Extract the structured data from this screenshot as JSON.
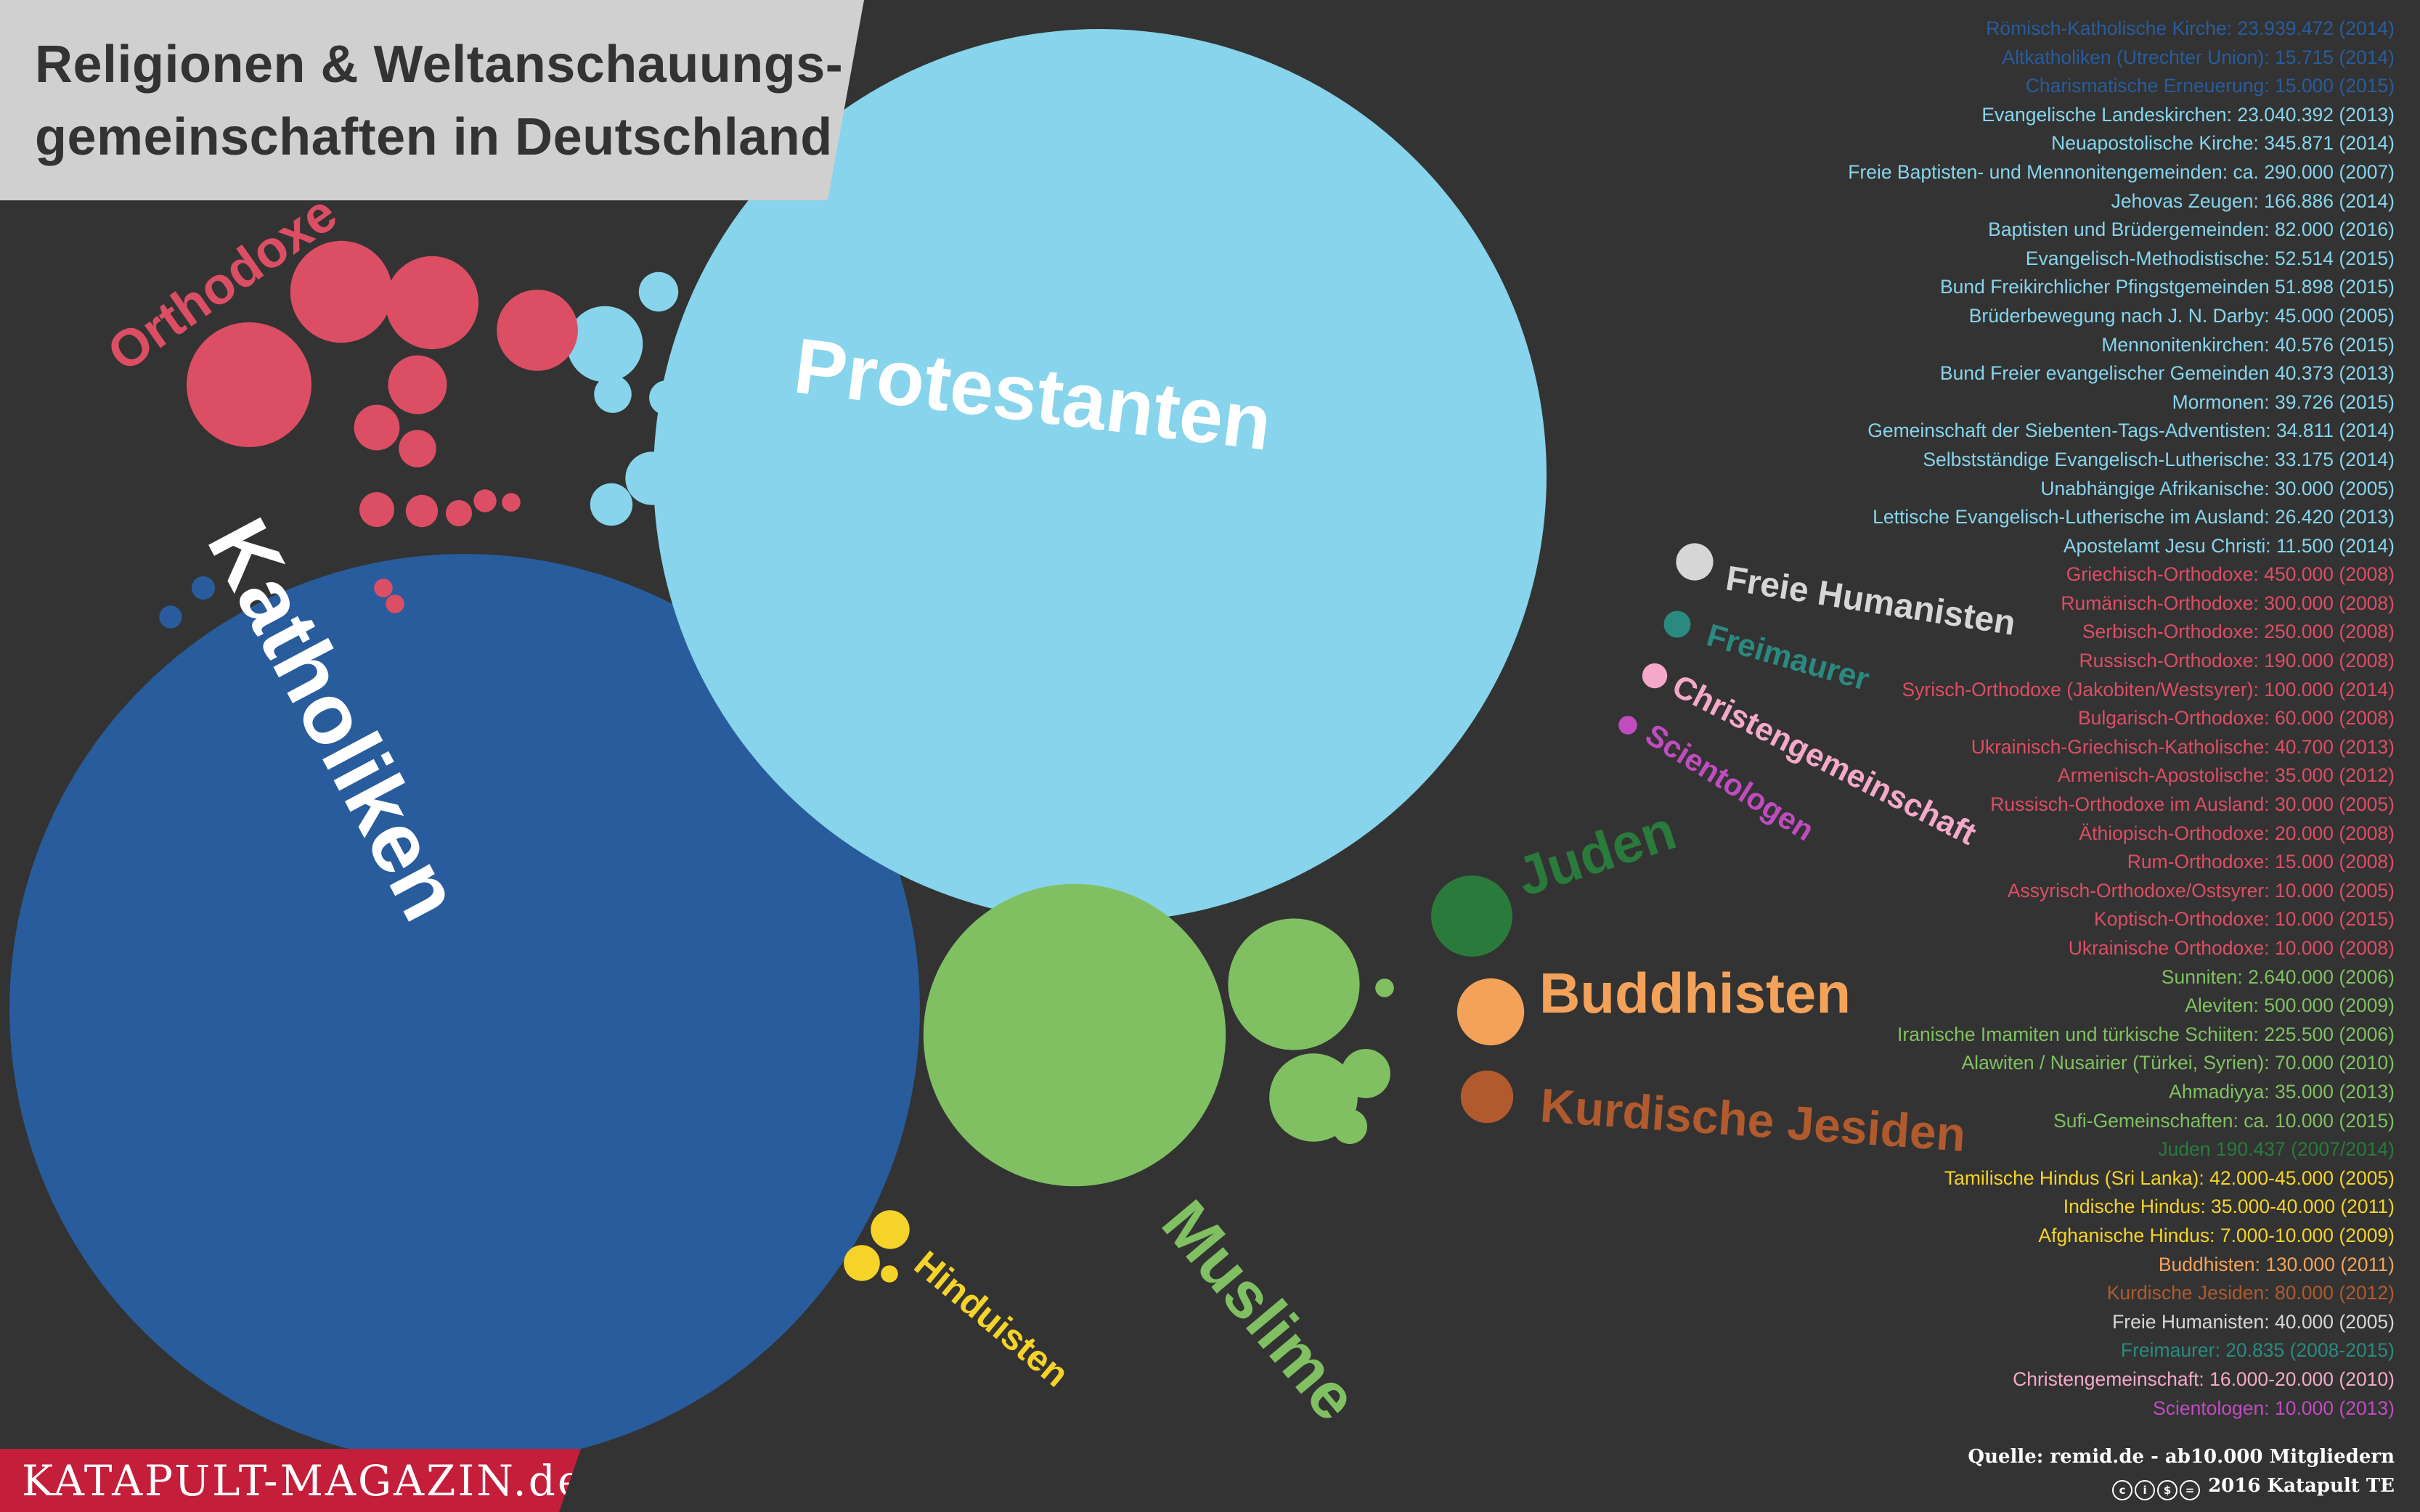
{
  "chart_data": {
    "type": "bubble",
    "title_line1": "Religionen & Weltanschauungs-",
    "title_line2": "gemeinschaften in Deutschland",
    "source": "Quelle: remid.de - ab10.000 Mitgliedern",
    "copyright": "2016 Katapult TE",
    "brand": "KATAPULT-MAGAZIN.de",
    "colors": {
      "katholiken": "#285c9c",
      "protestanten": "#87d4ec",
      "orthodoxe": "#dc4e64",
      "muslime": "#80c062",
      "hinduisten": "#f5d328",
      "juden": "#2a7a3c",
      "buddhisten": "#f4a25a",
      "jesiden": "#b05a2e",
      "humanisten": "#d6d6d6",
      "freimaurer": "#2a8a80",
      "christengemeinschaft": "#f4a9c8",
      "scientologen": "#c04cc0"
    },
    "groups": [
      {
        "key": "katholiken",
        "label": "Katholiken",
        "members": [
          "Römisch-Katholische Kirche",
          "Altkatholiken (Utrechter Union)",
          "Charismatische Erneuerung"
        ]
      },
      {
        "key": "protestanten",
        "label": "Protestanten",
        "members": [
          "Evangelische Landeskirchen",
          "Neuapostolische Kirche",
          "Freie Baptisten- und Mennonitengemeinden",
          "Jehovas Zeugen",
          "Baptisten und Brüdergemeinden",
          "Evangelisch-Methodistische",
          "Bund Freikirchlicher Pfingstgemeinden",
          "Brüderbewegung nach J. N. Darby",
          "Mennonitenkirchen",
          "Bund Freier evangelischer Gemeinden",
          "Mormonen",
          "Gemeinschaft der Siebenten-Tags-Adventisten",
          "Selbstständige Evangelisch-Lutherische",
          "Unabhängige Afrikanische",
          "Lettische Evangelisch-Lutherische im Ausland",
          "Apostelamt Jesu Christi"
        ]
      },
      {
        "key": "orthodoxe",
        "label": "Orthodoxe",
        "members": [
          "Griechisch-Orthodoxe",
          "Rumänisch-Orthodoxe",
          "Serbisch-Orthodoxe",
          "Russisch-Orthodoxe",
          "Syrisch-Orthodoxe",
          "Bulgarisch-Orthodoxe",
          "Ukrainisch-Griechisch-Katholische",
          "Armenisch-Apostolische",
          "Russisch-Orthodoxe im Ausland",
          "Äthiopisch-Orthodoxe",
          "Rum-Orthodoxe",
          "Assyrisch-Orthodoxe/Ostsyrer",
          "Koptisch-Orthodoxe",
          "Ukrainische Orthodoxe"
        ]
      },
      {
        "key": "muslime",
        "label": "Muslime",
        "members": [
          "Sunniten",
          "Aleviten",
          "Iranische Imamiten und türkische Schiiten",
          "Alawiten / Nusairier",
          "Ahmadiyya",
          "Sufi-Gemeinschaften"
        ]
      },
      {
        "key": "hinduisten",
        "label": "Hinduisten",
        "members": [
          "Tamilische Hindus",
          "Indische Hindus",
          "Afghanische Hindus"
        ]
      },
      {
        "key": "juden",
        "label": "Juden"
      },
      {
        "key": "buddhisten",
        "label": "Buddhisten"
      },
      {
        "key": "jesiden",
        "label": "Kurdische Jesiden"
      },
      {
        "key": "humanisten",
        "label": "Freie Humanisten"
      },
      {
        "key": "freimaurer",
        "label": "Freimaurer"
      },
      {
        "key": "christengemeinschaft",
        "label": "Christengemeinschaft"
      },
      {
        "key": "scientologen",
        "label": "Scientologen"
      }
    ],
    "legend": [
      {
        "text": "Römisch-Katholische Kirche: 23.939.472  (2014)",
        "group": "katholiken",
        "value": 23939472
      },
      {
        "text": "Altkatholiken (Utrechter Union): 15.715 (2014)",
        "group": "katholiken",
        "value": 15715
      },
      {
        "text": "Charismatische Erneuerung: 15.000 (2015)",
        "group": "katholiken",
        "value": 15000
      },
      {
        "text": "Evangelische Landeskirchen: 23.040.392 (2013)",
        "group": "protestanten",
        "value": 23040392
      },
      {
        "text": "Neuapostolische Kirche: 345.871 (2014)",
        "group": "protestanten",
        "value": 345871
      },
      {
        "text": "Freie Baptisten- und Mennonitengemeinden: ca. 290.000 (2007)",
        "group": "protestanten",
        "value": 290000
      },
      {
        "text": "Jehovas Zeugen: 166.886 (2014)",
        "group": "protestanten",
        "value": 166886
      },
      {
        "text": "Baptisten und Brüdergemeinden: 82.000 (2016)",
        "group": "protestanten",
        "value": 82000
      },
      {
        "text": "Evangelisch-Methodistische: 52.514 (2015)",
        "group": "protestanten",
        "value": 52514
      },
      {
        "text": "Bund Freikirchlicher Pfingstgemeinden 51.898 (2015)",
        "group": "protestanten",
        "value": 51898
      },
      {
        "text": "Brüderbewegung nach J. N. Darby: 45.000 (2005)",
        "group": "protestanten",
        "value": 45000
      },
      {
        "text": "Mennonitenkirchen: 40.576 (2015)",
        "group": "protestanten",
        "value": 40576
      },
      {
        "text": "Bund Freier evangelischer Gemeinden 40.373 (2013)",
        "group": "protestanten",
        "value": 40373
      },
      {
        "text": "Mormonen: 39.726 (2015)",
        "group": "protestanten",
        "value": 39726
      },
      {
        "text": "Gemeinschaft der Siebenten-Tags-Adventisten: 34.811 (2014)",
        "group": "protestanten",
        "value": 34811
      },
      {
        "text": "Selbstständige Evangelisch-Lutherische: 33.175 (2014)",
        "group": "protestanten",
        "value": 33175
      },
      {
        "text": "Unabhängige Afrikanische: 30.000 (2005)",
        "group": "protestanten",
        "value": 30000
      },
      {
        "text": "Lettische Evangelisch-Lutherische im Ausland: 26.420 (2013)",
        "group": "protestanten",
        "value": 26420
      },
      {
        "text": "Apostelamt Jesu Christi: 11.500 (2014)",
        "group": "protestanten",
        "value": 11500
      },
      {
        "text": "Griechisch-Orthodoxe: 450.000 (2008)",
        "group": "orthodoxe",
        "value": 450000
      },
      {
        "text": "Rumänisch-Orthodoxe: 300.000 (2008)",
        "group": "orthodoxe",
        "value": 300000
      },
      {
        "text": "Serbisch-Orthodoxe: 250.000 (2008)",
        "group": "orthodoxe",
        "value": 250000
      },
      {
        "text": "Russisch-Orthodoxe: 190.000 (2008)",
        "group": "orthodoxe",
        "value": 190000
      },
      {
        "text": "Syrisch-Orthodoxe (Jakobiten/Westsyrer): 100.000 (2014)",
        "group": "orthodoxe",
        "value": 100000
      },
      {
        "text": "Bulgarisch-Orthodoxe: 60.000 (2008)",
        "group": "orthodoxe",
        "value": 60000
      },
      {
        "text": "Ukrainisch-Griechisch-Katholische: 40.700 (2013)",
        "group": "orthodoxe",
        "value": 40700
      },
      {
        "text": "Armenisch-Apostolische: 35.000 (2012)",
        "group": "orthodoxe",
        "value": 35000
      },
      {
        "text": "Russisch-Orthodoxe im Ausland: 30.000 (2005)",
        "group": "orthodoxe",
        "value": 30000
      },
      {
        "text": "Äthiopisch-Orthodoxe: 20.000 (2008)",
        "group": "orthodoxe",
        "value": 20000
      },
      {
        "text": "Rum-Orthodoxe: 15.000 (2008)",
        "group": "orthodoxe",
        "value": 15000
      },
      {
        "text": "Assyrisch-Orthodoxe/Ostsyrer: 10.000 (2005)",
        "group": "orthodoxe",
        "value": 10000
      },
      {
        "text": "Koptisch-Orthodoxe: 10.000 (2015)",
        "group": "orthodoxe",
        "value": 10000
      },
      {
        "text": "Ukrainische Orthodoxe: 10.000 (2008)",
        "group": "orthodoxe",
        "value": 10000
      },
      {
        "text": "Sunniten: 2.640.000 (2006)",
        "group": "muslime",
        "value": 2640000
      },
      {
        "text": "Aleviten: 500.000 (2009)",
        "group": "muslime",
        "value": 500000
      },
      {
        "text": "Iranische Imamiten und türkische Schiiten: 225.500 (2006)",
        "group": "muslime",
        "value": 225500
      },
      {
        "text": "Alawiten / Nusairier (Türkei, Syrien): 70.000 (2010)",
        "group": "muslime",
        "value": 70000
      },
      {
        "text": "Ahmadiyya: 35.000 (2013)",
        "group": "muslime",
        "value": 35000
      },
      {
        "text": "Sufi-Gemeinschaften: ca. 10.000 (2015)",
        "group": "muslime",
        "value": 10000
      },
      {
        "text": "Juden 190.437 (2007/2014)",
        "group": "juden",
        "value": 190437
      },
      {
        "text": "Tamilische Hindus (Sri Lanka): 42.000-45.000 (2005)",
        "group": "hinduisten",
        "value": 43500
      },
      {
        "text": "Indische Hindus: 35.000-40.000 (2011)",
        "group": "hinduisten",
        "value": 37500
      },
      {
        "text": "Afghanische Hindus: 7.000-10.000 (2009)",
        "group": "hinduisten",
        "value": 8500
      },
      {
        "text": "Buddhisten: 130.000 (2011)",
        "group": "buddhisten",
        "value": 130000
      },
      {
        "text": "Kurdische Jesiden: 80.000 (2012)",
        "group": "jesiden",
        "value": 80000
      },
      {
        "text": "Freie Humanisten: 40.000 (2005)",
        "group": "humanisten",
        "value": 40000
      },
      {
        "text": "Freimaurer: 20.835 (2008-2015)",
        "group": "freimaurer",
        "value": 20835
      },
      {
        "text": "Christengemeinschaft: 16.000-20.000 (2010)",
        "group": "christengemeinschaft",
        "value": 18000
      },
      {
        "text": "Scientologen: 10.000 (2013)",
        "group": "scientologen",
        "value": 10000
      }
    ]
  }
}
